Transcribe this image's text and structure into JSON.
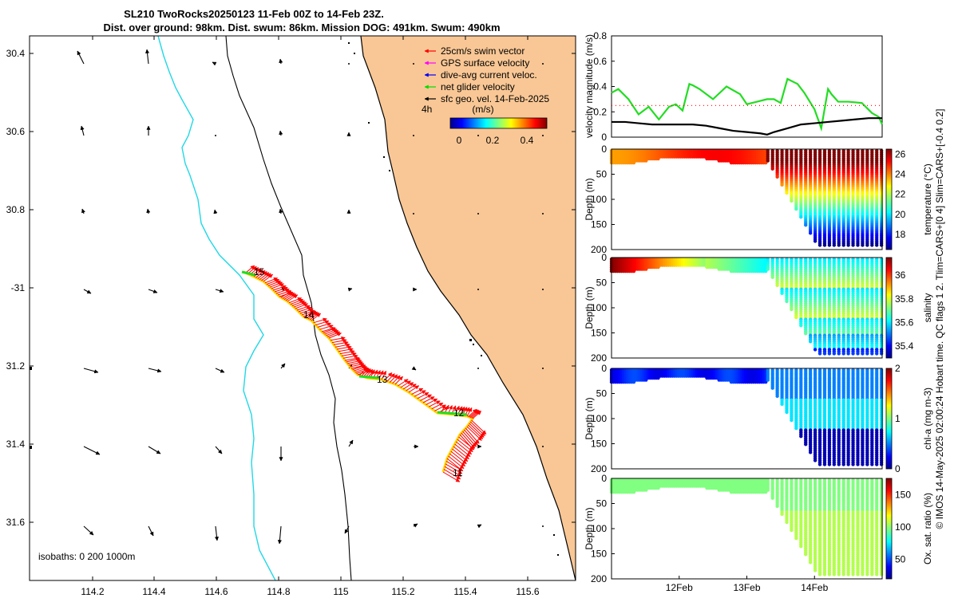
{
  "title": {
    "line1": "SL210 TwoRocks20250123 11-Feb 00Z to 14-Feb 23Z.",
    "line2": "Dist. over ground: 98km. Dist. swum: 86km. Mission DOG: 491km. Swum: 490km"
  },
  "side_note": "© IMOS 14-May-2025 02:00:24 Hobart time. QC flags 1  2. Tlim=CARS+[0 4] Slim=CARS+[-0.4 0.2]",
  "colors": {
    "land": "#F9C795",
    "coast": "#000000",
    "isobath200": "#000000",
    "isobath1000": "#22D8E6",
    "track_line": "#FFD700",
    "swim_vector": "#FF0000",
    "net_velocity": "#22DD22"
  },
  "map": {
    "lon_ticks": [
      "114.2",
      "114.4",
      "114.6",
      "114.8",
      "115",
      "115.2",
      "115.4",
      "115.6"
    ],
    "lat_ticks": [
      "30.4",
      "30.6",
      "30.8",
      "-31",
      "31.2",
      "31.4",
      "31.6"
    ],
    "legend": [
      {
        "label": "25cm/s swim vector",
        "color": "#FF0000"
      },
      {
        "label": "GPS surface velocity",
        "color": "#FF00FF"
      },
      {
        "label": "dive-avg current veloc.",
        "color": "#0000FF"
      },
      {
        "label": "net glider velocity",
        "color": "#00DD00"
      },
      {
        "label": "sfc geo. vel. 14-Feb-2025",
        "color": "#000000"
      }
    ],
    "legend_extra": "4h",
    "colorbar_unit": "(m/s)",
    "colorbar_ticks": [
      "0",
      "0.2",
      "0.4"
    ],
    "isobaths_note": "isobaths: 0   200  1000m",
    "day_labels": [
      "15",
      "14",
      "13",
      "12",
      "11"
    ]
  },
  "chart_data": [
    {
      "type": "line",
      "title": "velocity magnitude",
      "ylabel": "velocity magnitude (m/s)",
      "ylim": [
        0,
        0.8
      ],
      "yticks": [
        "0",
        "0.2",
        "0.4",
        "0.6",
        "0.8"
      ],
      "x_day_range": [
        11,
        15
      ],
      "series": [
        {
          "name": "net glider velocity",
          "color": "#22DD22",
          "x": [
            11.0,
            11.1,
            11.25,
            11.4,
            11.55,
            11.7,
            11.85,
            11.95,
            12.05,
            12.15,
            12.2,
            12.3,
            12.5,
            12.7,
            12.9,
            13.0,
            13.15,
            13.3,
            13.4,
            13.5,
            13.6,
            13.75,
            13.85,
            14.0,
            14.1,
            14.2,
            14.25,
            14.35,
            14.5,
            14.7,
            14.85,
            14.95,
            15.0
          ],
          "values": [
            0.35,
            0.38,
            0.3,
            0.18,
            0.24,
            0.14,
            0.24,
            0.26,
            0.21,
            0.42,
            0.41,
            0.38,
            0.3,
            0.4,
            0.34,
            0.26,
            0.28,
            0.3,
            0.3,
            0.27,
            0.46,
            0.42,
            0.35,
            0.22,
            0.07,
            0.38,
            0.34,
            0.28,
            0.28,
            0.27,
            0.19,
            0.16,
            0.1
          ]
        },
        {
          "name": "sfc geo. vel.",
          "color": "#000000",
          "x": [
            11.0,
            11.2,
            11.4,
            11.6,
            11.8,
            12.0,
            12.2,
            12.4,
            12.6,
            12.8,
            13.0,
            13.2,
            13.3,
            13.4,
            13.6,
            13.8,
            14.0,
            14.2,
            14.4,
            14.6,
            14.8,
            15.0
          ],
          "values": [
            0.12,
            0.12,
            0.11,
            0.1,
            0.1,
            0.1,
            0.1,
            0.09,
            0.07,
            0.05,
            0.04,
            0.03,
            0.02,
            0.04,
            0.07,
            0.1,
            0.11,
            0.12,
            0.13,
            0.14,
            0.15,
            0.15
          ]
        },
        {
          "name": "reference (dotted)",
          "color": "#FF0000",
          "x": [
            11.0,
            15.0
          ],
          "values": [
            0.25,
            0.25
          ]
        }
      ]
    },
    {
      "type": "heatmap",
      "variable": "temperature",
      "cbar_label": "temperature (°C)",
      "cbar_ticks": [
        "18",
        "20",
        "22",
        "24",
        "26"
      ],
      "vrange": [
        16.5,
        26.5
      ],
      "ylabel": "Depth (m)",
      "yticks": [
        "0",
        "50",
        "100",
        "150",
        "200"
      ]
    },
    {
      "type": "heatmap",
      "variable": "salinity",
      "cbar_label": "salinity",
      "cbar_ticks": [
        "35.4",
        "35.6",
        "35.8",
        "36"
      ],
      "vrange": [
        35.3,
        36.15
      ],
      "ylabel": "Depth (m)",
      "yticks": [
        "0",
        "50",
        "100",
        "150",
        "200"
      ]
    },
    {
      "type": "heatmap",
      "variable": "chl-a",
      "cbar_label": "chl-a (mg m-3)",
      "cbar_ticks": [
        "0",
        "1",
        "2"
      ],
      "vrange": [
        0,
        2
      ],
      "ylabel": "Depth (m)",
      "yticks": [
        "0",
        "50",
        "100",
        "150",
        "200"
      ]
    },
    {
      "type": "heatmap",
      "variable": "oxygen",
      "cbar_label": "Ox. sat. ratio (%)",
      "cbar_ticks": [
        "50",
        "100",
        "150"
      ],
      "vrange": [
        20,
        175
      ],
      "ylabel": "Depth (m)",
      "yticks": [
        "0",
        "50",
        "100",
        "150",
        "200"
      ],
      "xticks": [
        "12Feb",
        "13Feb",
        "14Feb"
      ]
    }
  ]
}
